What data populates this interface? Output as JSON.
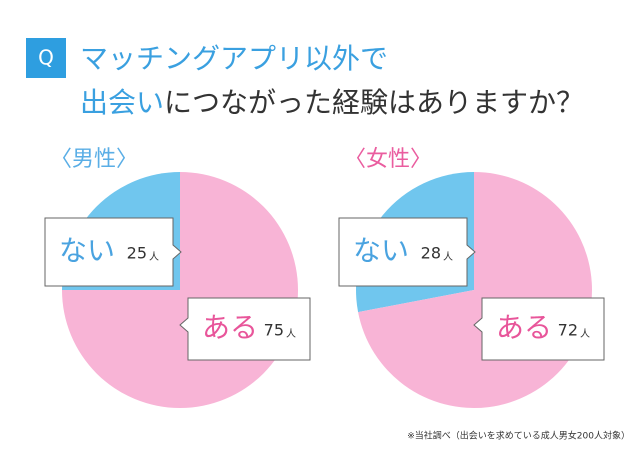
{
  "header": {
    "badge": "Q",
    "line1": "マッチングアプリ以外で",
    "line2_highlight": "出会い",
    "line2_rest": "につながった経験はありますか？"
  },
  "chart_data": [
    {
      "type": "pie",
      "title": "〈男性〉",
      "title_color": "#5aaee6",
      "categories": [
        "ない",
        "ある"
      ],
      "values": [
        25,
        75
      ],
      "unit": "人",
      "colors": [
        "#70c6ee",
        "#f8b4d6"
      ],
      "label_colors": [
        "#4aa3e0",
        "#e8559a"
      ]
    },
    {
      "type": "pie",
      "title": "〈女性〉",
      "title_color": "#ea5d9f",
      "categories": [
        "ない",
        "ある"
      ],
      "values": [
        28,
        72
      ],
      "unit": "人",
      "colors": [
        "#70c6ee",
        "#f8b4d6"
      ],
      "label_colors": [
        "#4aa3e0",
        "#e8559a"
      ]
    }
  ],
  "footnote": "※当社調べ（出会いを求めている成人男女200人対象）"
}
